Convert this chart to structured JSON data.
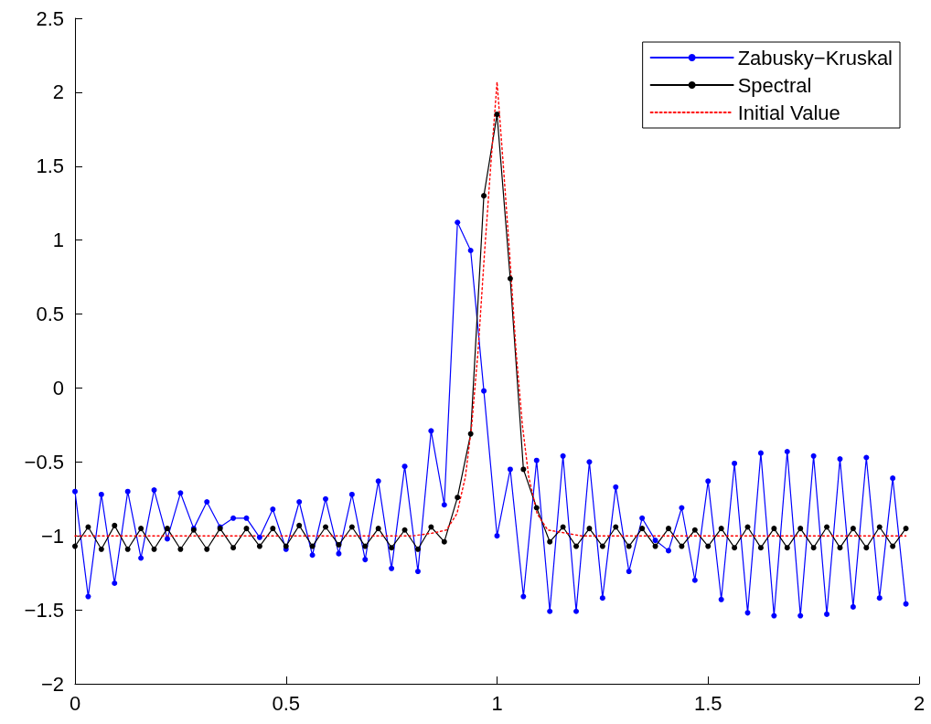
{
  "chart_data": {
    "type": "line",
    "x": [
      0,
      0.03125,
      0.0625,
      0.09375,
      0.125,
      0.15625,
      0.1875,
      0.21875,
      0.25,
      0.28125,
      0.3125,
      0.34375,
      0.375,
      0.40625,
      0.4375,
      0.46875,
      0.5,
      0.53125,
      0.5625,
      0.59375,
      0.625,
      0.65625,
      0.6875,
      0.71875,
      0.75,
      0.78125,
      0.8125,
      0.84375,
      0.875,
      0.90625,
      0.9375,
      0.96875,
      1,
      1.03125,
      1.0625,
      1.09375,
      1.125,
      1.15625,
      1.1875,
      1.21875,
      1.25,
      1.28125,
      1.3125,
      1.34375,
      1.375,
      1.40625,
      1.4375,
      1.46875,
      1.5,
      1.53125,
      1.5625,
      1.59375,
      1.625,
      1.65625,
      1.6875,
      1.71875,
      1.75,
      1.78125,
      1.8125,
      1.84375,
      1.875,
      1.90625,
      1.9375,
      1.96875
    ],
    "series": [
      {
        "name": "Zabusky−Kruskal",
        "color": "#0000ff",
        "marker": "circle",
        "line_style": "solid",
        "values": [
          -0.7,
          -1.41,
          -0.72,
          -1.32,
          -0.7,
          -1.15,
          -0.69,
          -1.02,
          -0.71,
          -0.95,
          -0.77,
          -0.94,
          -0.88,
          -0.88,
          -1.01,
          -0.82,
          -1.09,
          -0.77,
          -1.13,
          -0.75,
          -1.12,
          -0.72,
          -1.16,
          -0.63,
          -1.22,
          -0.53,
          -1.24,
          -0.29,
          -0.79,
          1.12,
          0.93,
          -0.02,
          -1.0,
          -0.55,
          -1.41,
          -0.49,
          -1.51,
          -0.46,
          -1.51,
          -0.5,
          -1.42,
          -0.67,
          -1.24,
          -0.88,
          -1.03,
          -1.1,
          -0.81,
          -1.3,
          -0.63,
          -1.43,
          -0.51,
          -1.52,
          -0.44,
          -1.54,
          -0.43,
          -1.54,
          -0.46,
          -1.53,
          -0.48,
          -1.48,
          -0.47,
          -1.42,
          -0.61,
          -1.46
        ]
      },
      {
        "name": "Spectral",
        "color": "#000000",
        "marker": "circle",
        "line_style": "solid",
        "values": [
          -1.07,
          -0.94,
          -1.09,
          -0.93,
          -1.09,
          -0.95,
          -1.09,
          -0.95,
          -1.09,
          -0.96,
          -1.09,
          -0.95,
          -1.08,
          -0.95,
          -1.07,
          -0.95,
          -1.07,
          -0.93,
          -1.07,
          -0.94,
          -1.06,
          -0.94,
          -1.07,
          -0.95,
          -1.08,
          -0.96,
          -1.09,
          -0.94,
          -1.04,
          -0.74,
          -0.31,
          1.3,
          1.85,
          0.74,
          -0.55,
          -0.81,
          -1.04,
          -0.94,
          -1.07,
          -0.95,
          -1.07,
          -0.94,
          -1.07,
          -0.95,
          -1.07,
          -0.95,
          -1.07,
          -0.96,
          -1.07,
          -0.95,
          -1.08,
          -0.94,
          -1.08,
          -0.95,
          -1.08,
          -0.95,
          -1.08,
          -0.94,
          -1.08,
          -0.95,
          -1.08,
          -0.94,
          -1.07,
          -0.95
        ]
      },
      {
        "name": "Initial Value",
        "color": "#ff0000",
        "marker": "none",
        "line_style": "dotted",
        "x": [
          0,
          0.8,
          0.85,
          0.88,
          0.905,
          0.925,
          0.94,
          0.955,
          0.97,
          0.985,
          1.0,
          1.015,
          1.03,
          1.045,
          1.06,
          1.075,
          1.095,
          1.12,
          1.2,
          1.96875
        ],
        "values": [
          -1,
          -1,
          -0.98,
          -0.96,
          -0.85,
          -0.6,
          -0.25,
          0.25,
          0.9,
          1.5,
          2.07,
          1.5,
          0.9,
          0.25,
          -0.25,
          -0.6,
          -0.85,
          -0.96,
          -1,
          -1
        ]
      }
    ],
    "xlim": [
      0,
      2
    ],
    "xticks": [
      0,
      0.5,
      1,
      1.5,
      2
    ],
    "ylim": [
      -2,
      2.5
    ],
    "yticks": [
      {
        "value": -2,
        "label": "−2"
      },
      {
        "value": -1.5,
        "label": "−1.5"
      },
      {
        "value": -1,
        "label": "−1"
      },
      {
        "value": -0.5,
        "label": "−0.5"
      },
      0,
      0.5,
      1,
      1.5,
      2,
      2.5
    ],
    "grid": false,
    "legend": "top right"
  }
}
